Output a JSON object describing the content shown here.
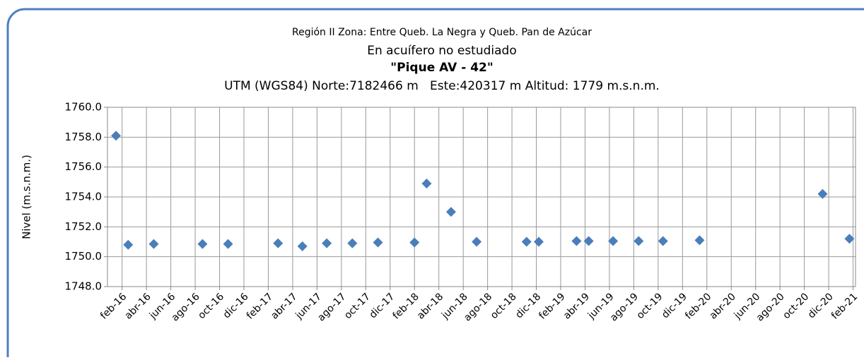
{
  "chart_data": {
    "type": "scatter",
    "title": "Región II  Zona: Entre Queb. La Negra y Queb. Pan de Azúcar",
    "subtitle": "En acuífero no estudiado",
    "well_name": "\"Pique AV - 42\"",
    "location": "UTM (WGS84) Norte:7182466 m   Este:420317 m Altitud: 1779 m.s.n.m.",
    "y_label": "Nivel (m.s.n.m.)",
    "grid": true,
    "xlim": [
      -1.2,
      60.2
    ],
    "xticks": [
      {
        "value": 0,
        "label": "feb-16"
      },
      {
        "value": 2,
        "label": "abr-16"
      },
      {
        "value": 4,
        "label": "jun-16"
      },
      {
        "value": 6,
        "label": "ago-16"
      },
      {
        "value": 8,
        "label": "oct-16"
      },
      {
        "value": 10,
        "label": "dic-16"
      },
      {
        "value": 12,
        "label": "feb-17"
      },
      {
        "value": 14,
        "label": "abr-17"
      },
      {
        "value": 16,
        "label": "jun-17"
      },
      {
        "value": 18,
        "label": "ago-17"
      },
      {
        "value": 20,
        "label": "oct-17"
      },
      {
        "value": 22,
        "label": "dic-17"
      },
      {
        "value": 24,
        "label": "feb-18"
      },
      {
        "value": 26,
        "label": "abr-18"
      },
      {
        "value": 28,
        "label": "jun-18"
      },
      {
        "value": 30,
        "label": "ago-18"
      },
      {
        "value": 32,
        "label": "oct-18"
      },
      {
        "value": 34,
        "label": "dic-18"
      },
      {
        "value": 36,
        "label": "feb-19"
      },
      {
        "value": 38,
        "label": "abr-19"
      },
      {
        "value": 40,
        "label": "jun-19"
      },
      {
        "value": 42,
        "label": "ago-19"
      },
      {
        "value": 44,
        "label": "oct-19"
      },
      {
        "value": 46,
        "label": "dic-19"
      },
      {
        "value": 48,
        "label": "feb-20"
      },
      {
        "value": 50,
        "label": "abr-20"
      },
      {
        "value": 52,
        "label": "jun-20"
      },
      {
        "value": 54,
        "label": "ago-20"
      },
      {
        "value": 56,
        "label": "oct-20"
      },
      {
        "value": 58,
        "label": "dic-20"
      },
      {
        "value": 60,
        "label": "feb-21"
      }
    ],
    "ylim": [
      1748,
      1760
    ],
    "yticks": [
      {
        "value": 1748,
        "label": "1748.0"
      },
      {
        "value": 1750,
        "label": "1750.0"
      },
      {
        "value": 1752,
        "label": "1752.0"
      },
      {
        "value": 1754,
        "label": "1754.0"
      },
      {
        "value": 1756,
        "label": "1756.0"
      },
      {
        "value": 1758,
        "label": "1758.0"
      },
      {
        "value": 1760,
        "label": "1760.0"
      }
    ],
    "series": [
      {
        "color": "#4a7ebb",
        "x": [
          -0.5,
          0.5,
          2.6,
          6.6,
          8.7,
          12.8,
          14.8,
          16.8,
          18.9,
          21.0,
          24.0,
          25.0,
          27.0,
          29.1,
          33.2,
          34.2,
          37.3,
          38.3,
          40.3,
          42.4,
          44.4,
          47.4,
          57.5,
          59.7
        ],
        "values": [
          1758.1,
          1750.8,
          1750.85,
          1750.85,
          1750.85,
          1750.9,
          1750.7,
          1750.9,
          1750.9,
          1750.95,
          1750.95,
          1754.9,
          1753.0,
          1751.0,
          1751.0,
          1751.0,
          1751.05,
          1751.05,
          1751.05,
          1751.05,
          1751.05,
          1751.1,
          1754.2,
          1751.2
        ]
      }
    ]
  }
}
